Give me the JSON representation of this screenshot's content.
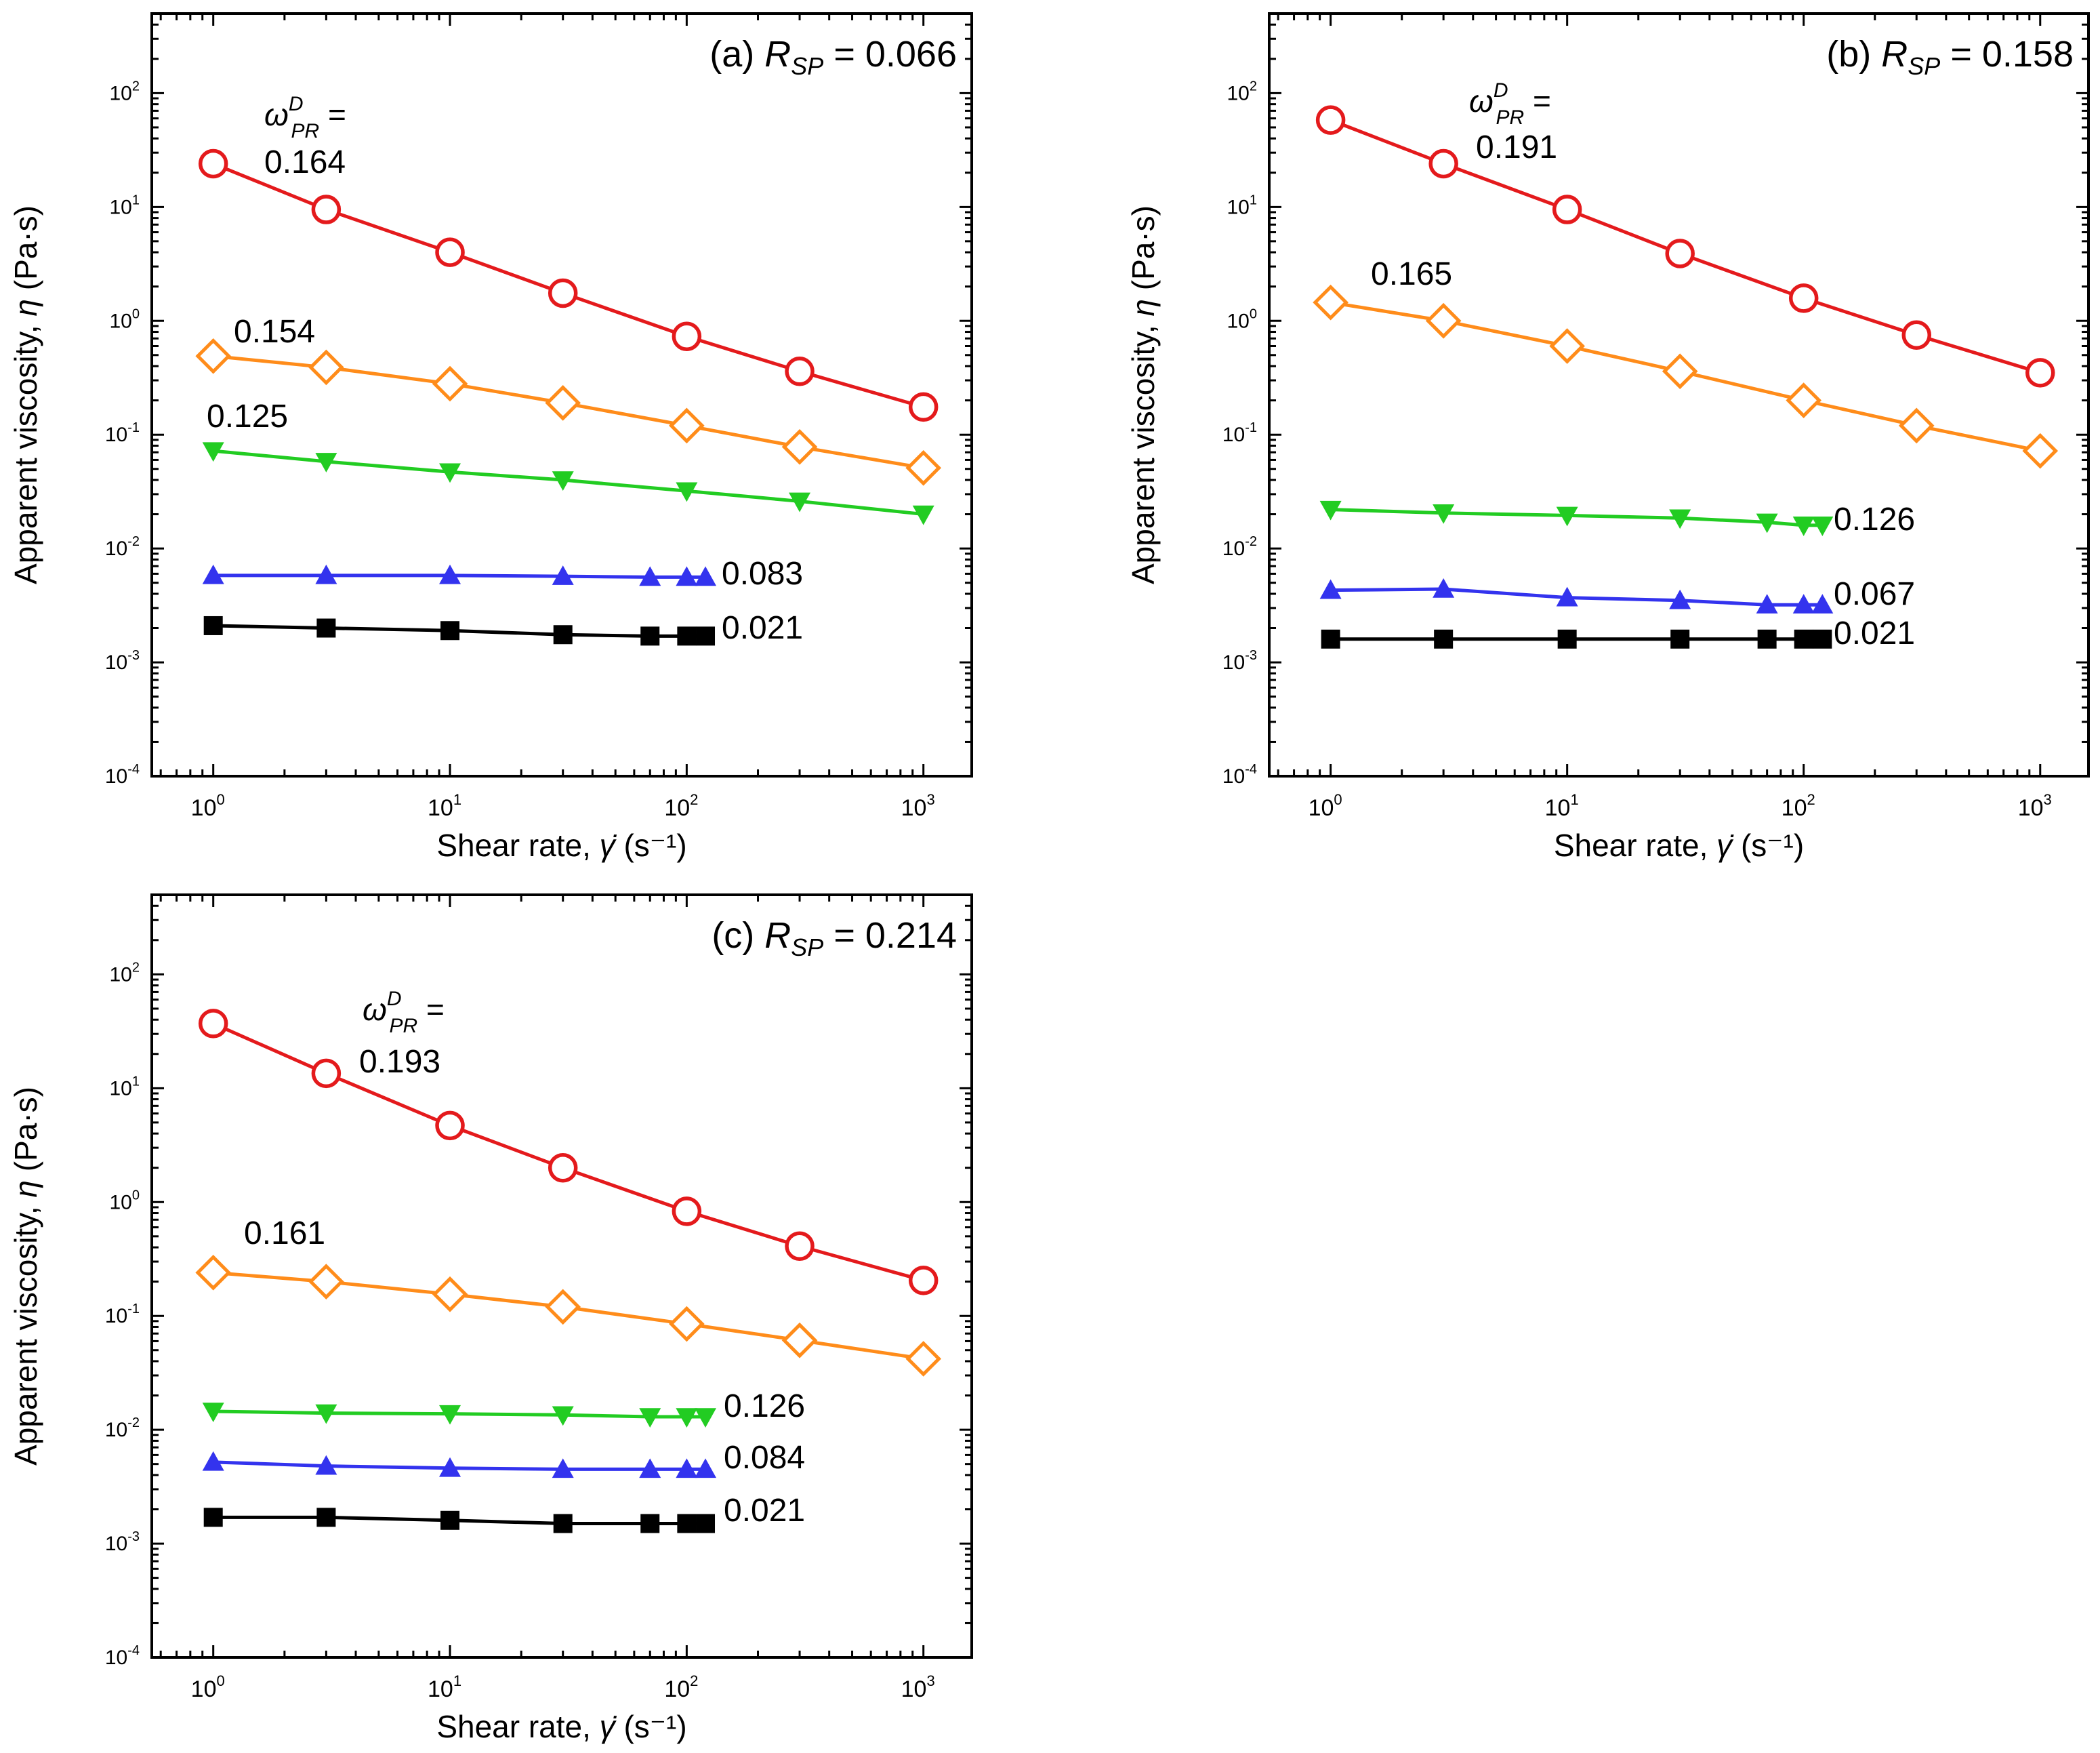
{
  "chart_data": [
    {
      "type": "line",
      "panel_label": "(a)",
      "panel_param_symbol": "R",
      "panel_param_subscript": "SP",
      "panel_param_value": "= 0.066",
      "xlabel_text": "Shear rate, ",
      "xlabel_symbol": "γ̇",
      "xlabel_unit": " (s⁻¹)",
      "ylabel_text": "Apparent viscosity, ",
      "ylabel_symbol": "η",
      "ylabel_unit": " (Pa·s)",
      "xscale": "log",
      "yscale": "log",
      "xlim": [
        0.55,
        1600
      ],
      "ylim": [
        0.0001,
        500
      ],
      "xticks": [
        {
          "base": "10",
          "exp": "0",
          "v": 1
        },
        {
          "base": "10",
          "exp": "1",
          "v": 10
        },
        {
          "base": "10",
          "exp": "2",
          "v": 100
        },
        {
          "base": "10",
          "exp": "3",
          "v": 1000
        }
      ],
      "yticks": [
        {
          "base": "10",
          "exp": "-4",
          "v": 0.0001
        },
        {
          "base": "10",
          "exp": "-3",
          "v": 0.001
        },
        {
          "base": "10",
          "exp": "-2",
          "v": 0.01
        },
        {
          "base": "10",
          "exp": "-1",
          "v": 0.1
        },
        {
          "base": "10",
          "exp": "0",
          "v": 1
        },
        {
          "base": "10",
          "exp": "1",
          "v": 10
        },
        {
          "base": "10",
          "exp": "2",
          "v": 100
        }
      ],
      "omega_label": {
        "symbol": "ω",
        "sup": "D",
        "sub": "PR",
        "eq": "="
      },
      "series": [
        {
          "name": "0.164",
          "color": "#e41a1c",
          "marker": "circle",
          "x": [
            1,
            3,
            10,
            30,
            100,
            300,
            1000
          ],
          "y": [
            24,
            9.5,
            4,
            1.75,
            0.73,
            0.36,
            0.175
          ]
        },
        {
          "name": "0.154",
          "color": "#ff8c1a",
          "marker": "diamond",
          "x": [
            1,
            3,
            10,
            30,
            100,
            300,
            1000
          ],
          "y": [
            0.49,
            0.39,
            0.28,
            0.19,
            0.12,
            0.078,
            0.051
          ]
        },
        {
          "name": "0.125",
          "color": "#22cc22",
          "marker": "triangle-down",
          "x": [
            1,
            3,
            10,
            30,
            100,
            300,
            1000
          ],
          "y": [
            0.072,
            0.058,
            0.047,
            0.04,
            0.032,
            0.026,
            0.02
          ]
        },
        {
          "name": "0.083",
          "color": "#3333ee",
          "marker": "triangle-up",
          "x": [
            1,
            3,
            10,
            30,
            70,
            100,
            120
          ],
          "y": [
            0.0058,
            0.0058,
            0.0058,
            0.0057,
            0.0056,
            0.0056,
            0.0056
          ]
        },
        {
          "name": "0.021",
          "color": "#000000",
          "marker": "square",
          "x": [
            1,
            3,
            10,
            30,
            70,
            100,
            120
          ],
          "y": [
            0.0021,
            0.002,
            0.0019,
            0.00175,
            0.0017,
            0.0017,
            0.0017
          ]
        }
      ]
    },
    {
      "type": "line",
      "panel_label": "(b)",
      "panel_param_symbol": "R",
      "panel_param_subscript": "SP",
      "panel_param_value": "= 0.158",
      "xlabel_text": "Shear rate, ",
      "xlabel_symbol": "γ̇",
      "xlabel_unit": " (s⁻¹)",
      "ylabel_text": "Apparent viscosity, ",
      "ylabel_symbol": "η",
      "ylabel_unit": " (Pa·s)",
      "xscale": "log",
      "yscale": "log",
      "xlim": [
        0.55,
        1600
      ],
      "ylim": [
        0.0001,
        500
      ],
      "xticks": [
        {
          "base": "10",
          "exp": "0",
          "v": 1
        },
        {
          "base": "10",
          "exp": "1",
          "v": 10
        },
        {
          "base": "10",
          "exp": "2",
          "v": 100
        },
        {
          "base": "10",
          "exp": "3",
          "v": 1000
        }
      ],
      "yticks": [
        {
          "base": "10",
          "exp": "-4",
          "v": 0.0001
        },
        {
          "base": "10",
          "exp": "-3",
          "v": 0.001
        },
        {
          "base": "10",
          "exp": "-2",
          "v": 0.01
        },
        {
          "base": "10",
          "exp": "-1",
          "v": 0.1
        },
        {
          "base": "10",
          "exp": "0",
          "v": 1
        },
        {
          "base": "10",
          "exp": "1",
          "v": 10
        },
        {
          "base": "10",
          "exp": "2",
          "v": 100
        }
      ],
      "omega_label": {
        "symbol": "ω",
        "sup": "D",
        "sub": "PR",
        "eq": "="
      },
      "series": [
        {
          "name": "0.191",
          "color": "#e41a1c",
          "marker": "circle",
          "x": [
            1,
            3,
            10,
            30,
            100,
            300,
            1000
          ],
          "y": [
            58,
            24,
            9.5,
            3.9,
            1.58,
            0.75,
            0.35
          ]
        },
        {
          "name": "0.165",
          "color": "#ff8c1a",
          "marker": "diamond",
          "x": [
            1,
            3,
            10,
            30,
            100,
            300,
            1000
          ],
          "y": [
            1.45,
            1.0,
            0.6,
            0.36,
            0.2,
            0.12,
            0.072
          ]
        },
        {
          "name": "0.126",
          "color": "#22cc22",
          "marker": "triangle-down",
          "x": [
            1,
            3,
            10,
            30,
            70,
            100,
            120
          ],
          "y": [
            0.022,
            0.0205,
            0.0195,
            0.0185,
            0.017,
            0.016,
            0.016
          ]
        },
        {
          "name": "0.067",
          "color": "#3333ee",
          "marker": "triangle-up",
          "x": [
            1,
            3,
            10,
            30,
            70,
            100,
            120
          ],
          "y": [
            0.0043,
            0.0044,
            0.0037,
            0.0035,
            0.0032,
            0.0032,
            0.0032
          ]
        },
        {
          "name": "0.021",
          "color": "#000000",
          "marker": "square",
          "x": [
            1,
            3,
            10,
            30,
            70,
            100,
            120
          ],
          "y": [
            0.0016,
            0.0016,
            0.0016,
            0.0016,
            0.0016,
            0.0016,
            0.0016
          ]
        }
      ]
    },
    {
      "type": "line",
      "panel_label": "(c)",
      "panel_param_symbol": "R",
      "panel_param_subscript": "SP",
      "panel_param_value": "= 0.214",
      "xlabel_text": "Shear rate, ",
      "xlabel_symbol": "γ̇",
      "xlabel_unit": " (s⁻¹)",
      "ylabel_text": "Apparent viscosity, ",
      "ylabel_symbol": "η",
      "ylabel_unit": " (Pa·s)",
      "xscale": "log",
      "yscale": "log",
      "xlim": [
        0.55,
        1600
      ],
      "ylim": [
        0.0001,
        500
      ],
      "xticks": [
        {
          "base": "10",
          "exp": "0",
          "v": 1
        },
        {
          "base": "10",
          "exp": "1",
          "v": 10
        },
        {
          "base": "10",
          "exp": "2",
          "v": 100
        },
        {
          "base": "10",
          "exp": "3",
          "v": 1000
        }
      ],
      "yticks": [
        {
          "base": "10",
          "exp": "-4",
          "v": 0.0001
        },
        {
          "base": "10",
          "exp": "-3",
          "v": 0.001
        },
        {
          "base": "10",
          "exp": "-2",
          "v": 0.01
        },
        {
          "base": "10",
          "exp": "-1",
          "v": 0.1
        },
        {
          "base": "10",
          "exp": "0",
          "v": 1
        },
        {
          "base": "10",
          "exp": "1",
          "v": 10
        },
        {
          "base": "10",
          "exp": "2",
          "v": 100
        }
      ],
      "omega_label": {
        "symbol": "ω",
        "sup": "D",
        "sub": "PR",
        "eq": "="
      },
      "series": [
        {
          "name": "0.193",
          "color": "#e41a1c",
          "marker": "circle",
          "x": [
            1,
            3,
            10,
            30,
            100,
            300,
            1000
          ],
          "y": [
            37,
            13.5,
            4.7,
            2.0,
            0.83,
            0.41,
            0.205
          ]
        },
        {
          "name": "0.161",
          "color": "#ff8c1a",
          "marker": "diamond",
          "x": [
            1,
            3,
            10,
            30,
            100,
            300,
            1000
          ],
          "y": [
            0.24,
            0.2,
            0.155,
            0.12,
            0.085,
            0.061,
            0.042
          ]
        },
        {
          "name": "0.126",
          "color": "#22cc22",
          "marker": "triangle-down",
          "x": [
            1,
            3,
            10,
            30,
            70,
            100,
            120
          ],
          "y": [
            0.0145,
            0.014,
            0.0138,
            0.0135,
            0.013,
            0.013,
            0.013
          ]
        },
        {
          "name": "0.084",
          "color": "#3333ee",
          "marker": "triangle-up",
          "x": [
            1,
            3,
            10,
            30,
            70,
            100,
            120
          ],
          "y": [
            0.0052,
            0.0048,
            0.0046,
            0.0045,
            0.0045,
            0.0045,
            0.0045
          ]
        },
        {
          "name": "0.021",
          "color": "#000000",
          "marker": "square",
          "x": [
            1,
            3,
            10,
            30,
            70,
            100,
            120
          ],
          "y": [
            0.0017,
            0.0017,
            0.0016,
            0.0015,
            0.0015,
            0.0015,
            0.0015
          ]
        }
      ]
    }
  ]
}
